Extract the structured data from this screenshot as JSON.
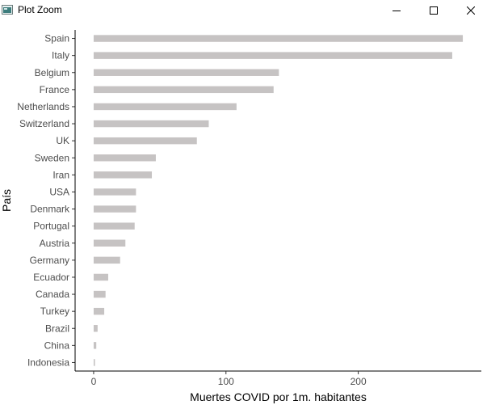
{
  "window": {
    "title": "Plot Zoom",
    "icon": "plot-window-icon",
    "controls": [
      "minimize-icon",
      "maximize-icon",
      "close-icon"
    ]
  },
  "chart_data": {
    "type": "bar",
    "orientation": "horizontal",
    "categories": [
      "Spain",
      "Italy",
      "Belgium",
      "France",
      "Netherlands",
      "Switzerland",
      "UK",
      "Sweden",
      "Iran",
      "USA",
      "Denmark",
      "Portugal",
      "Austria",
      "Germany",
      "Ecuador",
      "Canada",
      "Turkey",
      "Brazil",
      "China",
      "Indonesia"
    ],
    "values": [
      279,
      271,
      140,
      136,
      108,
      87,
      78,
      47,
      44,
      32,
      32,
      31,
      24,
      20,
      11,
      9,
      8,
      3,
      2,
      1
    ],
    "xlabel": "Muertes COVID por 1m. habitantes",
    "ylabel": "País",
    "xlim": [
      -14,
      293
    ],
    "xticks": [
      0,
      100,
      200
    ],
    "xtick_labels": [
      "0",
      "100",
      "200"
    ],
    "bar_color": "#c6c3c3",
    "grid": false,
    "legend": "none"
  }
}
